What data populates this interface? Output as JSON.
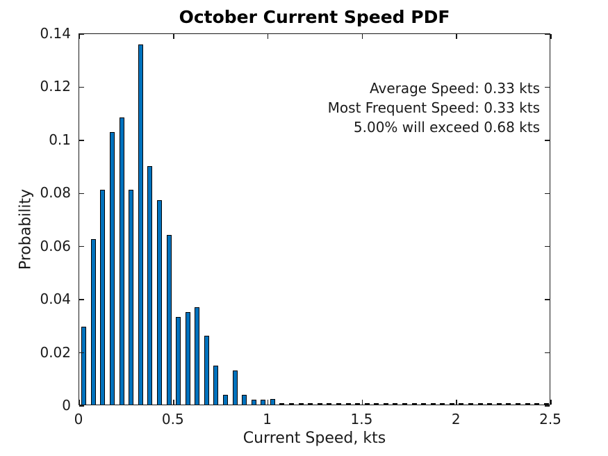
{
  "chart_data": {
    "type": "bar",
    "title": "October Current Speed PDF",
    "xlabel": "Current Speed, kts",
    "ylabel": "Probability",
    "xlim": [
      0,
      2.5
    ],
    "ylim": [
      0,
      0.14
    ],
    "grid": false,
    "legend": false,
    "bin_width": 0.05,
    "bar_color": "#0072BD",
    "bar_edge_color": "#000000",
    "axis_color": "#1a1a1a",
    "xticks": {
      "values": [
        0,
        0.5,
        1,
        1.5,
        2,
        2.5
      ],
      "labels": [
        "0",
        "0.5",
        "1",
        "1.5",
        "2",
        "2.5"
      ]
    },
    "yticks": {
      "values": [
        0,
        0.02,
        0.04,
        0.06,
        0.08,
        0.1,
        0.12,
        0.14
      ],
      "labels": [
        "0",
        "0.02",
        "0.04",
        "0.06",
        "0.08",
        "0.1",
        "0.12",
        "0.14"
      ]
    },
    "bin_centers": [
      0.025,
      0.075,
      0.125,
      0.175,
      0.225,
      0.275,
      0.325,
      0.375,
      0.425,
      0.475,
      0.525,
      0.575,
      0.625,
      0.675,
      0.725,
      0.775,
      0.825,
      0.875,
      0.925,
      0.975,
      1.025,
      1.075,
      1.125,
      1.175,
      1.225,
      1.275,
      1.325,
      1.375,
      1.425,
      1.475,
      1.525,
      1.575,
      1.625,
      1.675,
      1.725,
      1.775,
      1.825,
      1.875,
      1.925,
      1.975,
      2.025,
      2.075,
      2.125,
      2.175,
      2.225,
      2.275,
      2.325,
      2.375,
      2.425,
      2.475
    ],
    "probabilities": [
      0.029,
      0.062,
      0.0805,
      0.1023,
      0.1078,
      0.0805,
      0.1353,
      0.0896,
      0.0767,
      0.0637,
      0.0326,
      0.0345,
      0.0365,
      0.0256,
      0.0144,
      0.0035,
      0.0126,
      0.0035,
      0.0015,
      0.0017,
      0.0018,
      0,
      0,
      0,
      0,
      0,
      0,
      0,
      0,
      0,
      0,
      0,
      0,
      0,
      0,
      0,
      0,
      0,
      0,
      0,
      0,
      0,
      0,
      0,
      0,
      0,
      0,
      0,
      0,
      0
    ],
    "annotations": [
      "Average Speed: 0.33 kts",
      "Most Frequent Speed: 0.33 kts",
      "5.00% will exceed 0.68 kts"
    ]
  }
}
